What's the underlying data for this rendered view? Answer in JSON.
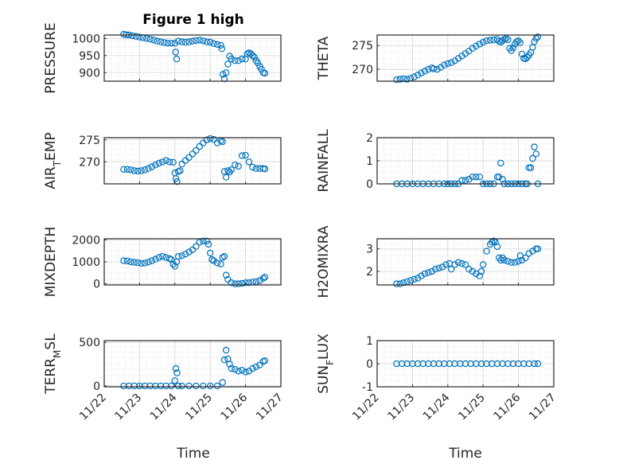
{
  "figure_title": "Figure 1 high",
  "x_label": "Time",
  "marker_color": "#0072BD",
  "x_ticks": [
    "11/22",
    "11/23",
    "11/24",
    "11/25",
    "11/26",
    "11/27"
  ],
  "chart_data": [
    {
      "type": "scatter",
      "id": "pressure",
      "ylabel": "PRESSURE",
      "xlim": [
        0,
        5
      ],
      "ylim": [
        875,
        1010
      ],
      "yticks": [
        900,
        950,
        1000
      ],
      "ytick_labels": [
        "900",
        "950",
        "1000"
      ],
      "x": [
        0.55,
        0.62,
        0.7,
        0.8,
        0.9,
        1.0,
        1.1,
        1.2,
        1.3,
        1.4,
        1.5,
        1.6,
        1.7,
        1.8,
        1.9,
        2.0,
        2.02,
        2.05,
        2.1,
        2.2,
        2.3,
        2.4,
        2.5,
        2.6,
        2.7,
        2.8,
        2.9,
        3.0,
        3.1,
        3.2,
        3.3,
        3.33,
        3.36,
        3.4,
        3.45,
        3.5,
        3.55,
        3.6,
        3.7,
        3.8,
        3.9,
        4.0,
        4.05,
        4.1,
        4.15,
        4.2,
        4.25,
        4.3,
        4.35,
        4.4,
        4.45,
        4.5,
        4.55
      ],
      "y": [
        1012,
        1011,
        1010,
        1008,
        1006,
        1004,
        1002,
        1000,
        998,
        995,
        992,
        990,
        988,
        986,
        986,
        986,
        960,
        940,
        992,
        990,
        989,
        990,
        992,
        994,
        995,
        993,
        990,
        989,
        985,
        982,
        980,
        970,
        895,
        882,
        900,
        925,
        948,
        940,
        935,
        935,
        940,
        940,
        955,
        958,
        955,
        950,
        945,
        935,
        928,
        918,
        910,
        900,
        898
      ]
    },
    {
      "type": "scatter",
      "id": "theta",
      "ylabel": "THETA",
      "xlim": [
        0,
        5
      ],
      "ylim": [
        267.5,
        277.2
      ],
      "yticks": [
        270,
        275
      ],
      "ytick_labels": [
        "270",
        "275"
      ],
      "x": [
        0.55,
        0.65,
        0.75,
        0.85,
        0.95,
        1.05,
        1.15,
        1.25,
        1.35,
        1.45,
        1.55,
        1.6,
        1.7,
        1.8,
        1.9,
        2.0,
        2.1,
        2.2,
        2.3,
        2.4,
        2.5,
        2.6,
        2.7,
        2.8,
        2.9,
        3.0,
        3.1,
        3.2,
        3.3,
        3.4,
        3.45,
        3.5,
        3.55,
        3.6,
        3.65,
        3.7,
        3.75,
        3.8,
        3.85,
        3.9,
        3.95,
        4.0,
        4.05,
        4.1,
        4.15,
        4.2,
        4.25,
        4.3,
        4.35,
        4.4,
        4.45,
        4.5,
        4.55
      ],
      "y": [
        267.8,
        267.9,
        268.0,
        267.9,
        268.1,
        268.4,
        268.8,
        269.2,
        269.6,
        270.0,
        270.3,
        270.1,
        270.0,
        270.4,
        270.9,
        271.2,
        271.4,
        271.8,
        272.3,
        272.8,
        273.3,
        273.8,
        274.4,
        274.9,
        275.3,
        275.7,
        276.0,
        276.1,
        276.2,
        276.3,
        275.9,
        275.7,
        276.0,
        276.3,
        276.5,
        276.2,
        274.4,
        273.9,
        274.5,
        275.3,
        275.8,
        276.0,
        275.6,
        273.2,
        272.3,
        272.2,
        272.5,
        273.0,
        273.5,
        274.6,
        275.8,
        276.5,
        276.8
      ]
    },
    {
      "type": "scatter",
      "id": "air_temp",
      "ylabel_main": "AIR",
      "ylabel_sub": "T",
      "ylabel_rest": "EMP",
      "xlim": [
        0,
        5
      ],
      "ylim": [
        265,
        275.5
      ],
      "yticks": [
        270,
        275
      ],
      "ytick_labels": [
        "270",
        "275"
      ],
      "x": [
        0.55,
        0.65,
        0.75,
        0.85,
        0.95,
        1.05,
        1.15,
        1.25,
        1.35,
        1.45,
        1.55,
        1.65,
        1.75,
        1.85,
        1.95,
        2.0,
        2.03,
        2.06,
        2.1,
        2.15,
        2.2,
        2.3,
        2.4,
        2.5,
        2.6,
        2.7,
        2.8,
        2.9,
        3.0,
        3.1,
        3.2,
        3.3,
        3.35,
        3.4,
        3.45,
        3.5,
        3.55,
        3.6,
        3.7,
        3.8,
        3.9,
        4.0,
        4.1,
        4.2,
        4.3,
        4.4,
        4.5,
        4.55
      ],
      "y": [
        268.3,
        268.3,
        268.2,
        268.0,
        267.9,
        268.0,
        268.2,
        268.5,
        268.9,
        269.3,
        269.7,
        270.0,
        270.3,
        270.0,
        269.9,
        267.5,
        266.2,
        265.5,
        267.8,
        268.0,
        269.5,
        270.3,
        271.0,
        271.8,
        272.6,
        273.5,
        274.3,
        275.0,
        275.3,
        275.1,
        274.3,
        274.8,
        274.6,
        267.8,
        266.5,
        268.0,
        267.7,
        268.2,
        269.3,
        269.0,
        271.4,
        271.5,
        270.0,
        268.8,
        268.5,
        268.5,
        268.5,
        268.4
      ]
    },
    {
      "type": "scatter",
      "id": "rainfall",
      "ylabel": "RAINFALL",
      "xlim": [
        0,
        5
      ],
      "ylim": [
        0,
        2
      ],
      "yticks": [
        0,
        1,
        2
      ],
      "ytick_labels": [
        "0",
        "1",
        "2"
      ],
      "x": [
        0.55,
        0.7,
        0.85,
        1.0,
        1.15,
        1.3,
        1.45,
        1.6,
        1.75,
        1.9,
        2.0,
        2.1,
        2.2,
        2.3,
        2.4,
        2.5,
        2.6,
        2.7,
        2.8,
        2.9,
        3.0,
        3.1,
        3.2,
        3.3,
        3.4,
        3.45,
        3.5,
        3.55,
        3.6,
        3.7,
        3.8,
        3.9,
        4.0,
        4.1,
        4.2,
        4.25,
        4.3,
        4.35,
        4.4,
        4.45,
        4.5,
        4.55
      ],
      "y": [
        0,
        0,
        0,
        0,
        0,
        0,
        0,
        0,
        0,
        0,
        0,
        0,
        0,
        0,
        0.15,
        0.15,
        0.2,
        0.3,
        0.3,
        0.3,
        0,
        0,
        0,
        0,
        0.3,
        0.3,
        0.9,
        0.2,
        0,
        0,
        0,
        0,
        0,
        0,
        0,
        0,
        0.7,
        0.7,
        1.1,
        1.6,
        1.3,
        0
      ]
    },
    {
      "type": "scatter",
      "id": "mixdepth",
      "ylabel": "MIXDEPTH",
      "xlim": [
        0,
        5
      ],
      "ylim": [
        -50,
        2050
      ],
      "yticks": [
        0,
        1000,
        2000
      ],
      "ytick_labels": [
        "0",
        "1000",
        "2000"
      ],
      "x": [
        0.55,
        0.65,
        0.75,
        0.85,
        0.95,
        1.05,
        1.15,
        1.25,
        1.35,
        1.45,
        1.55,
        1.65,
        1.75,
        1.85,
        1.9,
        1.95,
        2.0,
        2.05,
        2.1,
        2.2,
        2.3,
        2.4,
        2.5,
        2.6,
        2.7,
        2.8,
        2.9,
        2.95,
        3.0,
        3.05,
        3.1,
        3.2,
        3.3,
        3.35,
        3.4,
        3.45,
        3.5,
        3.6,
        3.7,
        3.8,
        3.9,
        4.0,
        4.1,
        4.2,
        4.3,
        4.4,
        4.5,
        4.55
      ],
      "y": [
        1050,
        1040,
        1000,
        980,
        960,
        930,
        950,
        990,
        1050,
        1120,
        1200,
        1250,
        1200,
        1150,
        1100,
        900,
        800,
        1000,
        1250,
        1280,
        1350,
        1450,
        1550,
        1700,
        1900,
        1950,
        1950,
        1800,
        1400,
        1100,
        1050,
        950,
        900,
        1200,
        1250,
        400,
        200,
        50,
        0,
        0,
        20,
        50,
        50,
        80,
        100,
        150,
        250,
        300
      ]
    },
    {
      "type": "scatter",
      "id": "h2omixra",
      "ylabel": "H2OMIXRA",
      "xlim": [
        0,
        5
      ],
      "ylim": [
        1.4,
        3.45
      ],
      "yticks": [
        2,
        3
      ],
      "ytick_labels": [
        "2",
        "3"
      ],
      "x": [
        0.55,
        0.65,
        0.75,
        0.85,
        0.95,
        1.05,
        1.15,
        1.25,
        1.35,
        1.45,
        1.55,
        1.65,
        1.75,
        1.85,
        1.95,
        2.05,
        2.1,
        2.2,
        2.3,
        2.4,
        2.5,
        2.6,
        2.7,
        2.8,
        2.9,
        2.95,
        3.0,
        3.1,
        3.2,
        3.25,
        3.3,
        3.35,
        3.4,
        3.45,
        3.5,
        3.55,
        3.6,
        3.7,
        3.8,
        3.9,
        4.0,
        4.05,
        4.1,
        4.2,
        4.3,
        4.4,
        4.5,
        4.55
      ],
      "y": [
        1.45,
        1.45,
        1.5,
        1.55,
        1.6,
        1.65,
        1.7,
        1.8,
        1.9,
        1.95,
        2.0,
        2.1,
        2.15,
        2.2,
        2.3,
        2.35,
        2.1,
        2.3,
        2.4,
        2.35,
        2.3,
        2.1,
        2.0,
        1.9,
        1.8,
        2.0,
        2.3,
        2.9,
        3.2,
        3.3,
        3.35,
        3.3,
        3.1,
        2.6,
        2.5,
        2.6,
        2.5,
        2.45,
        2.4,
        2.4,
        2.45,
        2.7,
        2.5,
        2.6,
        2.8,
        2.9,
        3.0,
        3.0
      ]
    },
    {
      "type": "scatter",
      "id": "terr_msl",
      "ylabel_main": "TERR",
      "ylabel_sub": "M",
      "ylabel_rest": "SL",
      "xlim": [
        0,
        5
      ],
      "ylim": [
        -10,
        520
      ],
      "yticks": [
        0,
        500
      ],
      "ytick_labels": [
        "0",
        "500"
      ],
      "x": [
        0.55,
        0.7,
        0.85,
        1.0,
        1.15,
        1.3,
        1.45,
        1.6,
        1.75,
        1.9,
        2.0,
        2.03,
        2.06,
        2.1,
        2.2,
        2.4,
        2.6,
        2.8,
        3.0,
        3.2,
        3.35,
        3.4,
        3.45,
        3.5,
        3.55,
        3.6,
        3.7,
        3.8,
        3.9,
        4.0,
        4.1,
        4.2,
        4.3,
        4.4,
        4.5,
        4.55
      ],
      "y": [
        0,
        0,
        0,
        0,
        0,
        0,
        0,
        0,
        0,
        0,
        60,
        200,
        150,
        0,
        0,
        0,
        0,
        0,
        0,
        0,
        40,
        300,
        410,
        310,
        250,
        200,
        190,
        170,
        180,
        160,
        170,
        200,
        220,
        240,
        280,
        290
      ]
    },
    {
      "type": "scatter",
      "id": "sun_flux",
      "ylabel_main": "SUN",
      "ylabel_sub": "F",
      "ylabel_rest": "LUX",
      "xlim": [
        0,
        5
      ],
      "ylim": [
        -1,
        1
      ],
      "yticks": [
        -1,
        0,
        1
      ],
      "ytick_labels": [
        "-1",
        "0",
        "1"
      ],
      "x": [
        0.55,
        0.7,
        0.85,
        1.0,
        1.15,
        1.3,
        1.45,
        1.6,
        1.75,
        1.9,
        2.05,
        2.2,
        2.35,
        2.5,
        2.65,
        2.8,
        2.95,
        3.1,
        3.25,
        3.4,
        3.55,
        3.7,
        3.85,
        4.0,
        4.15,
        4.3,
        4.45,
        4.55
      ],
      "y": [
        0,
        0,
        0,
        0,
        0,
        0,
        0,
        0,
        0,
        0,
        0,
        0,
        0,
        0,
        0,
        0,
        0,
        0,
        0,
        0,
        0,
        0,
        0,
        0,
        0,
        0,
        0,
        0
      ]
    }
  ]
}
